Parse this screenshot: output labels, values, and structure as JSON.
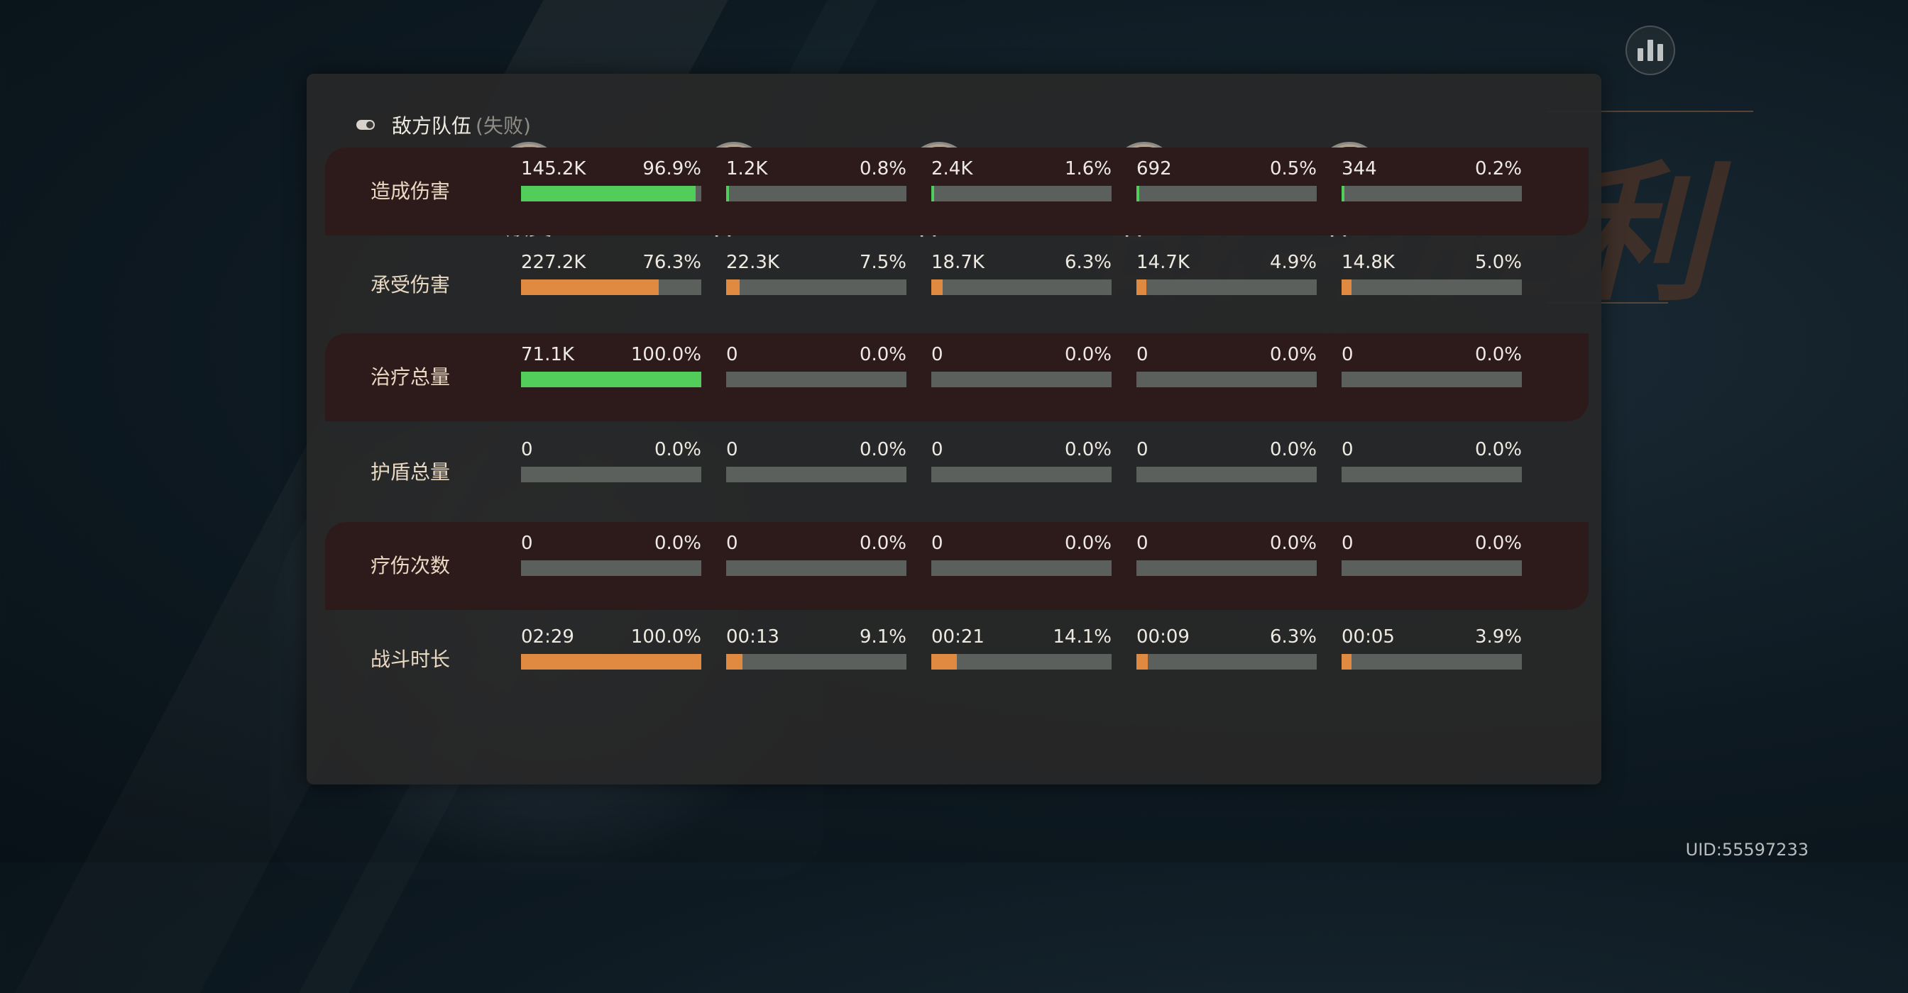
{
  "team": {
    "name": "敌方队伍",
    "status": "(失败)"
  },
  "heroes": [
    {
      "name": "顺奕",
      "avatar_icon": "bearded-official-portrait-icon"
    },
    {
      "name": "官差",
      "avatar_icon": "constable-portrait-icon"
    },
    {
      "name": "官差",
      "avatar_icon": "constable-portrait-icon"
    },
    {
      "name": "官差",
      "avatar_icon": "constable-portrait-icon"
    },
    {
      "name": "官差",
      "avatar_icon": "constable-portrait-icon"
    }
  ],
  "colors": {
    "green": "#52cd5b",
    "orange": "#e08a41",
    "bar_track": "#5b605d",
    "row_dark": "#2d1b1c"
  },
  "stats": [
    {
      "label": "造成伤害",
      "bar_color": "green",
      "cells": [
        {
          "value": "145.2K",
          "percent": "96.9%",
          "fraction": 0.969
        },
        {
          "value": "1.2K",
          "percent": "0.8%",
          "fraction": 0.008
        },
        {
          "value": "2.4K",
          "percent": "1.6%",
          "fraction": 0.016
        },
        {
          "value": "692",
          "percent": "0.5%",
          "fraction": 0.005
        },
        {
          "value": "344",
          "percent": "0.2%",
          "fraction": 0.002
        }
      ]
    },
    {
      "label": "承受伤害",
      "bar_color": "orange",
      "cells": [
        {
          "value": "227.2K",
          "percent": "76.3%",
          "fraction": 0.763
        },
        {
          "value": "22.3K",
          "percent": "7.5%",
          "fraction": 0.075
        },
        {
          "value": "18.7K",
          "percent": "6.3%",
          "fraction": 0.063
        },
        {
          "value": "14.7K",
          "percent": "4.9%",
          "fraction": 0.049
        },
        {
          "value": "14.8K",
          "percent": "5.0%",
          "fraction": 0.05
        }
      ]
    },
    {
      "label": "治疗总量",
      "bar_color": "green",
      "cells": [
        {
          "value": "71.1K",
          "percent": "100.0%",
          "fraction": 1.0
        },
        {
          "value": "0",
          "percent": "0.0%",
          "fraction": 0
        },
        {
          "value": "0",
          "percent": "0.0%",
          "fraction": 0
        },
        {
          "value": "0",
          "percent": "0.0%",
          "fraction": 0
        },
        {
          "value": "0",
          "percent": "0.0%",
          "fraction": 0
        }
      ]
    },
    {
      "label": "护盾总量",
      "bar_color": "green",
      "cells": [
        {
          "value": "0",
          "percent": "0.0%",
          "fraction": 0
        },
        {
          "value": "0",
          "percent": "0.0%",
          "fraction": 0
        },
        {
          "value": "0",
          "percent": "0.0%",
          "fraction": 0
        },
        {
          "value": "0",
          "percent": "0.0%",
          "fraction": 0
        },
        {
          "value": "0",
          "percent": "0.0%",
          "fraction": 0
        }
      ]
    },
    {
      "label": "疗伤次数",
      "bar_color": "green",
      "cells": [
        {
          "value": "0",
          "percent": "0.0%",
          "fraction": 0
        },
        {
          "value": "0",
          "percent": "0.0%",
          "fraction": 0
        },
        {
          "value": "0",
          "percent": "0.0%",
          "fraction": 0
        },
        {
          "value": "0",
          "percent": "0.0%",
          "fraction": 0
        },
        {
          "value": "0",
          "percent": "0.0%",
          "fraction": 0
        }
      ]
    },
    {
      "label": "战斗时长",
      "bar_color": "orange",
      "cells": [
        {
          "value": "02:29",
          "percent": "100.0%",
          "fraction": 1.0
        },
        {
          "value": "00:13",
          "percent": "9.1%",
          "fraction": 0.091
        },
        {
          "value": "00:21",
          "percent": "14.1%",
          "fraction": 0.141
        },
        {
          "value": "00:09",
          "percent": "6.3%",
          "fraction": 0.063
        },
        {
          "value": "00:05",
          "percent": "3.9%",
          "fraction": 0.039
        }
      ]
    }
  ],
  "background": {
    "banner_text": "战斗胜利"
  },
  "footer": {
    "uid": "UID:55597233"
  },
  "icons": {
    "stats_button": "bar-chart-icon",
    "swap": "refresh-swap-icon",
    "team_toggle": "toggle-icon"
  }
}
